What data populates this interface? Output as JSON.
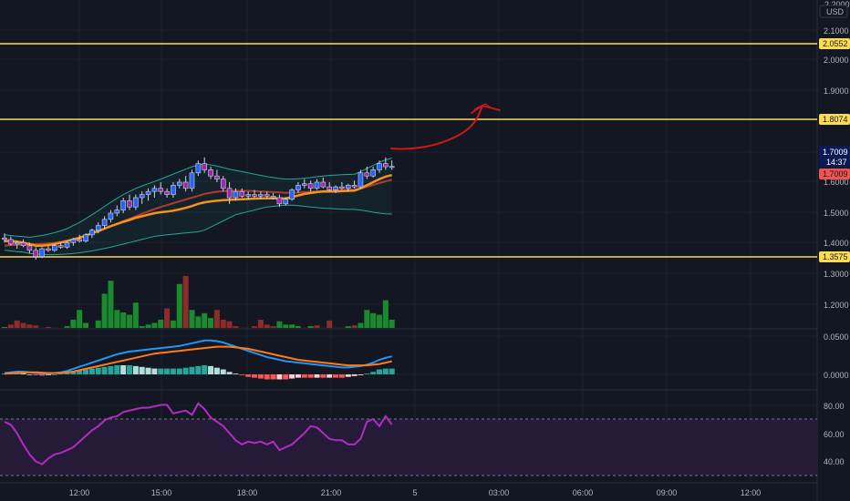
{
  "price_axis": {
    "currency": "USD",
    "top_partial": "2.2000",
    "labels": [
      "2.1000",
      "2.0000",
      "1.9000",
      "1.6000",
      "1.5000",
      "1.4000"
    ]
  },
  "tags": {
    "res_high": "2.0552",
    "res_mid": "1.8074",
    "current_price": "1.7009",
    "countdown": "14:37",
    "ma_value": "1.7009",
    "support": "1.3575"
  },
  "volume_axis": [
    "1.3000",
    "1.2000"
  ],
  "macd_axis": [
    "0.0500",
    "0.0000"
  ],
  "rsi_axis": [
    "80.00",
    "60.00",
    "40.00"
  ],
  "time_axis": [
    "12:00",
    "15:00",
    "18:00",
    "21:00",
    "5",
    "03:00",
    "06:00",
    "09:00",
    "12:00"
  ],
  "colors": {
    "background": "#131722",
    "bull": "#2962ff",
    "bear": "#9c27b0",
    "level": "#fddb52",
    "ema_fast": "#f7931a",
    "ema_slow": "#b03a2e",
    "bollinger": "#26a69a",
    "vol_up": "#1b8a2e",
    "vol_down": "#8e2c2c",
    "macd": "#2196f3",
    "signal": "#ff7a1a",
    "rsi": "#b02cc4",
    "arrow": "#d01818"
  },
  "chart_data": {
    "type": "candlestick",
    "price_levels": [
      2.0552,
      1.8074,
      1.3575
    ],
    "last_price": 1.7009,
    "candles": [
      [
        1.47,
        1.485,
        1.455,
        1.465
      ],
      [
        1.465,
        1.475,
        1.445,
        1.45
      ],
      [
        1.45,
        1.46,
        1.435,
        1.455
      ],
      [
        1.455,
        1.465,
        1.44,
        1.445
      ],
      [
        1.445,
        1.455,
        1.42,
        1.43
      ],
      [
        1.43,
        1.44,
        1.4,
        1.41
      ],
      [
        1.41,
        1.44,
        1.405,
        1.435
      ],
      [
        1.435,
        1.445,
        1.425,
        1.43
      ],
      [
        1.43,
        1.45,
        1.425,
        1.445
      ],
      [
        1.445,
        1.455,
        1.435,
        1.44
      ],
      [
        1.44,
        1.46,
        1.435,
        1.455
      ],
      [
        1.455,
        1.47,
        1.445,
        1.465
      ],
      [
        1.465,
        1.48,
        1.455,
        1.46
      ],
      [
        1.46,
        1.485,
        1.455,
        1.48
      ],
      [
        1.48,
        1.5,
        1.47,
        1.495
      ],
      [
        1.495,
        1.52,
        1.485,
        1.51
      ],
      [
        1.51,
        1.54,
        1.5,
        1.53
      ],
      [
        1.53,
        1.56,
        1.52,
        1.55
      ],
      [
        1.55,
        1.575,
        1.54,
        1.56
      ],
      [
        1.56,
        1.6,
        1.55,
        1.59
      ],
      [
        1.59,
        1.61,
        1.56,
        1.57
      ],
      [
        1.57,
        1.61,
        1.56,
        1.6
      ],
      [
        1.6,
        1.62,
        1.58,
        1.61
      ],
      [
        1.61,
        1.63,
        1.59,
        1.62
      ],
      [
        1.62,
        1.64,
        1.6,
        1.63
      ],
      [
        1.63,
        1.65,
        1.61,
        1.62
      ],
      [
        1.62,
        1.63,
        1.6,
        1.61
      ],
      [
        1.61,
        1.65,
        1.6,
        1.64
      ],
      [
        1.64,
        1.66,
        1.63,
        1.65
      ],
      [
        1.65,
        1.67,
        1.62,
        1.63
      ],
      [
        1.63,
        1.69,
        1.62,
        1.68
      ],
      [
        1.68,
        1.72,
        1.67,
        1.71
      ],
      [
        1.71,
        1.73,
        1.68,
        1.69
      ],
      [
        1.69,
        1.7,
        1.66,
        1.67
      ],
      [
        1.67,
        1.69,
        1.65,
        1.66
      ],
      [
        1.66,
        1.67,
        1.62,
        1.63
      ],
      [
        1.63,
        1.65,
        1.58,
        1.6
      ],
      [
        1.6,
        1.63,
        1.59,
        1.62
      ],
      [
        1.62,
        1.63,
        1.6,
        1.605
      ],
      [
        1.605,
        1.62,
        1.595,
        1.61
      ],
      [
        1.61,
        1.625,
        1.6,
        1.605
      ],
      [
        1.605,
        1.62,
        1.595,
        1.61
      ],
      [
        1.61,
        1.62,
        1.6,
        1.605
      ],
      [
        1.605,
        1.615,
        1.595,
        1.6
      ],
      [
        1.6,
        1.61,
        1.57,
        1.58
      ],
      [
        1.58,
        1.6,
        1.575,
        1.595
      ],
      [
        1.595,
        1.63,
        1.59,
        1.625
      ],
      [
        1.625,
        1.65,
        1.615,
        1.64
      ],
      [
        1.64,
        1.66,
        1.63,
        1.645
      ],
      [
        1.645,
        1.655,
        1.62,
        1.63
      ],
      [
        1.63,
        1.66,
        1.625,
        1.65
      ],
      [
        1.65,
        1.665,
        1.63,
        1.635
      ],
      [
        1.635,
        1.65,
        1.62,
        1.625
      ],
      [
        1.625,
        1.64,
        1.615,
        1.635
      ],
      [
        1.635,
        1.65,
        1.625,
        1.63
      ],
      [
        1.63,
        1.645,
        1.62,
        1.64
      ],
      [
        1.64,
        1.655,
        1.63,
        1.635
      ],
      [
        1.635,
        1.69,
        1.63,
        1.68
      ],
      [
        1.68,
        1.7,
        1.66,
        1.67
      ],
      [
        1.67,
        1.7,
        1.665,
        1.69
      ],
      [
        1.69,
        1.72,
        1.68,
        1.71
      ],
      [
        1.71,
        1.73,
        1.69,
        1.7
      ],
      [
        1.7,
        1.72,
        1.69,
        1.701
      ]
    ],
    "ema_fast": [
      1.46,
      1.46,
      1.458,
      1.455,
      1.45,
      1.445,
      1.445,
      1.447,
      1.45,
      1.455,
      1.46,
      1.465,
      1.47,
      1.478,
      1.485,
      1.492,
      1.5,
      1.508,
      1.515,
      1.522,
      1.528,
      1.535,
      1.54,
      1.545,
      1.55,
      1.553,
      1.555,
      1.558,
      1.562,
      1.567,
      1.573,
      1.58,
      1.585,
      1.588,
      1.59,
      1.592,
      1.593,
      1.594,
      1.595,
      1.596,
      1.597,
      1.598,
      1.598,
      1.598,
      1.597,
      1.598,
      1.602,
      1.607,
      1.612,
      1.615,
      1.618,
      1.62,
      1.62,
      1.62,
      1.621,
      1.622,
      1.623,
      1.63,
      1.64,
      1.65,
      1.66,
      1.668,
      1.673
    ],
    "ema_slow": [
      1.445,
      1.447,
      1.448,
      1.45,
      1.45,
      1.45,
      1.451,
      1.452,
      1.454,
      1.457,
      1.461,
      1.466,
      1.472,
      1.478,
      1.485,
      1.492,
      1.5,
      1.508,
      1.516,
      1.524,
      1.532,
      1.54,
      1.548,
      1.556,
      1.563,
      1.57,
      1.576,
      1.582,
      1.588,
      1.594,
      1.6,
      1.606,
      1.612,
      1.616,
      1.619,
      1.621,
      1.622,
      1.622,
      1.622,
      1.622,
      1.621,
      1.62,
      1.619,
      1.618,
      1.617,
      1.616,
      1.616,
      1.617,
      1.618,
      1.619,
      1.62,
      1.621,
      1.622,
      1.623,
      1.624,
      1.625,
      1.626,
      1.63,
      1.635,
      1.641,
      1.647,
      1.653,
      1.658
    ],
    "bollinger_upper": [
      1.48,
      1.478,
      1.476,
      1.474,
      1.472,
      1.475,
      1.478,
      1.482,
      1.487,
      1.493,
      1.5,
      1.51,
      1.52,
      1.532,
      1.545,
      1.558,
      1.572,
      1.585,
      1.598,
      1.61,
      1.62,
      1.63,
      1.638,
      1.645,
      1.652,
      1.66,
      1.668,
      1.676,
      1.684,
      1.692,
      1.7,
      1.706,
      1.708,
      1.706,
      1.702,
      1.697,
      1.692,
      1.688,
      1.684,
      1.68,
      1.676,
      1.672,
      1.668,
      1.665,
      1.662,
      1.66,
      1.66,
      1.661,
      1.663,
      1.665,
      1.668,
      1.67,
      1.672,
      1.673,
      1.674,
      1.675,
      1.676,
      1.684,
      1.694,
      1.704,
      1.714,
      1.722,
      1.728
    ],
    "bollinger_lower": [
      1.43,
      1.428,
      1.426,
      1.424,
      1.42,
      1.418,
      1.417,
      1.416,
      1.416,
      1.417,
      1.418,
      1.42,
      1.422,
      1.425,
      1.428,
      1.432,
      1.436,
      1.44,
      1.445,
      1.45,
      1.455,
      1.46,
      1.465,
      1.47,
      1.475,
      1.478,
      1.48,
      1.482,
      1.484,
      1.486,
      1.488,
      1.49,
      1.495,
      1.505,
      1.515,
      1.525,
      1.535,
      1.545,
      1.55,
      1.555,
      1.56,
      1.565,
      1.57,
      1.572,
      1.574,
      1.576,
      1.576,
      1.574,
      1.572,
      1.57,
      1.568,
      1.566,
      1.565,
      1.564,
      1.563,
      1.562,
      1.562,
      1.56,
      1.557,
      1.553,
      1.55,
      1.548,
      1.547
    ],
    "volume_direction": [
      1,
      -1,
      -1,
      -1,
      -1,
      -1,
      1,
      -1,
      1,
      1,
      1,
      1,
      1,
      1,
      1,
      1,
      1,
      1,
      1,
      1,
      1,
      1,
      1,
      1,
      1,
      1,
      -1,
      1,
      1,
      -1,
      1,
      1,
      1,
      1,
      -1,
      -1,
      -1,
      -1,
      -1,
      -1,
      -1,
      -1,
      -1,
      -1,
      1,
      1,
      1,
      1,
      1,
      1,
      -1,
      -1,
      -1,
      1,
      -1,
      1,
      -1,
      1,
      1,
      1,
      1,
      1,
      1
    ],
    "volume": [
      1.135,
      1.15,
      1.175,
      1.16,
      1.15,
      1.145,
      1.13,
      1.135,
      1.13,
      1.125,
      1.14,
      1.18,
      1.24,
      1.16,
      1.125,
      1.175,
      1.34,
      1.42,
      1.24,
      1.225,
      1.21,
      1.285,
      1.14,
      1.15,
      1.16,
      1.18,
      1.25,
      1.175,
      1.4,
      1.45,
      1.24,
      1.2,
      1.22,
      1.19,
      1.24,
      1.18,
      1.17,
      1.14,
      1.13,
      1.13,
      1.14,
      1.18,
      1.15,
      1.14,
      1.17,
      1.15,
      1.15,
      1.14,
      1.13,
      1.14,
      1.145,
      1.13,
      1.175,
      1.13,
      1.13,
      1.14,
      1.145,
      1.16,
      1.24,
      1.22,
      1.21,
      1.3,
      1.18
    ],
    "macd": [
      0.002,
      0.003,
      0.004,
      0.004,
      0.003,
      0.002,
      0.001,
      0.001,
      0.002,
      0.003,
      0.005,
      0.008,
      0.011,
      0.014,
      0.017,
      0.02,
      0.023,
      0.026,
      0.029,
      0.031,
      0.033,
      0.034,
      0.035,
      0.036,
      0.037,
      0.038,
      0.039,
      0.04,
      0.041,
      0.043,
      0.045,
      0.047,
      0.049,
      0.049,
      0.048,
      0.046,
      0.043,
      0.04,
      0.037,
      0.034,
      0.031,
      0.028,
      0.025,
      0.023,
      0.021,
      0.019,
      0.018,
      0.017,
      0.016,
      0.015,
      0.014,
      0.013,
      0.012,
      0.011,
      0.01,
      0.01,
      0.011,
      0.012,
      0.014,
      0.017,
      0.021,
      0.024,
      0.026
    ],
    "macd_signal": [
      0.001,
      0.0015,
      0.002,
      0.0025,
      0.003,
      0.003,
      0.0025,
      0.002,
      0.002,
      0.002,
      0.003,
      0.004,
      0.006,
      0.008,
      0.01,
      0.012,
      0.014,
      0.016,
      0.018,
      0.02,
      0.022,
      0.024,
      0.026,
      0.028,
      0.03,
      0.031,
      0.032,
      0.033,
      0.034,
      0.035,
      0.036,
      0.037,
      0.038,
      0.039,
      0.04,
      0.04,
      0.04,
      0.039,
      0.038,
      0.037,
      0.035,
      0.033,
      0.031,
      0.029,
      0.027,
      0.025,
      0.023,
      0.021,
      0.02,
      0.019,
      0.018,
      0.017,
      0.016,
      0.015,
      0.014,
      0.013,
      0.013,
      0.013,
      0.013,
      0.014,
      0.015,
      0.017,
      0.019
    ],
    "rsi": [
      68,
      66,
      60,
      52,
      45,
      40,
      38,
      42,
      45,
      46,
      48,
      50,
      54,
      58,
      62,
      65,
      69,
      71,
      72,
      75,
      76,
      77,
      78,
      78,
      79,
      80,
      80,
      74,
      75,
      76,
      73,
      81,
      77,
      71,
      68,
      65,
      60,
      55,
      52,
      54,
      53,
      54,
      52,
      54,
      48,
      50,
      52,
      56,
      60,
      65,
      64,
      60,
      56,
      55,
      55,
      52,
      52,
      56,
      68,
      70,
      65,
      72,
      66
    ],
    "rsi_levels": [
      70,
      30
    ]
  }
}
